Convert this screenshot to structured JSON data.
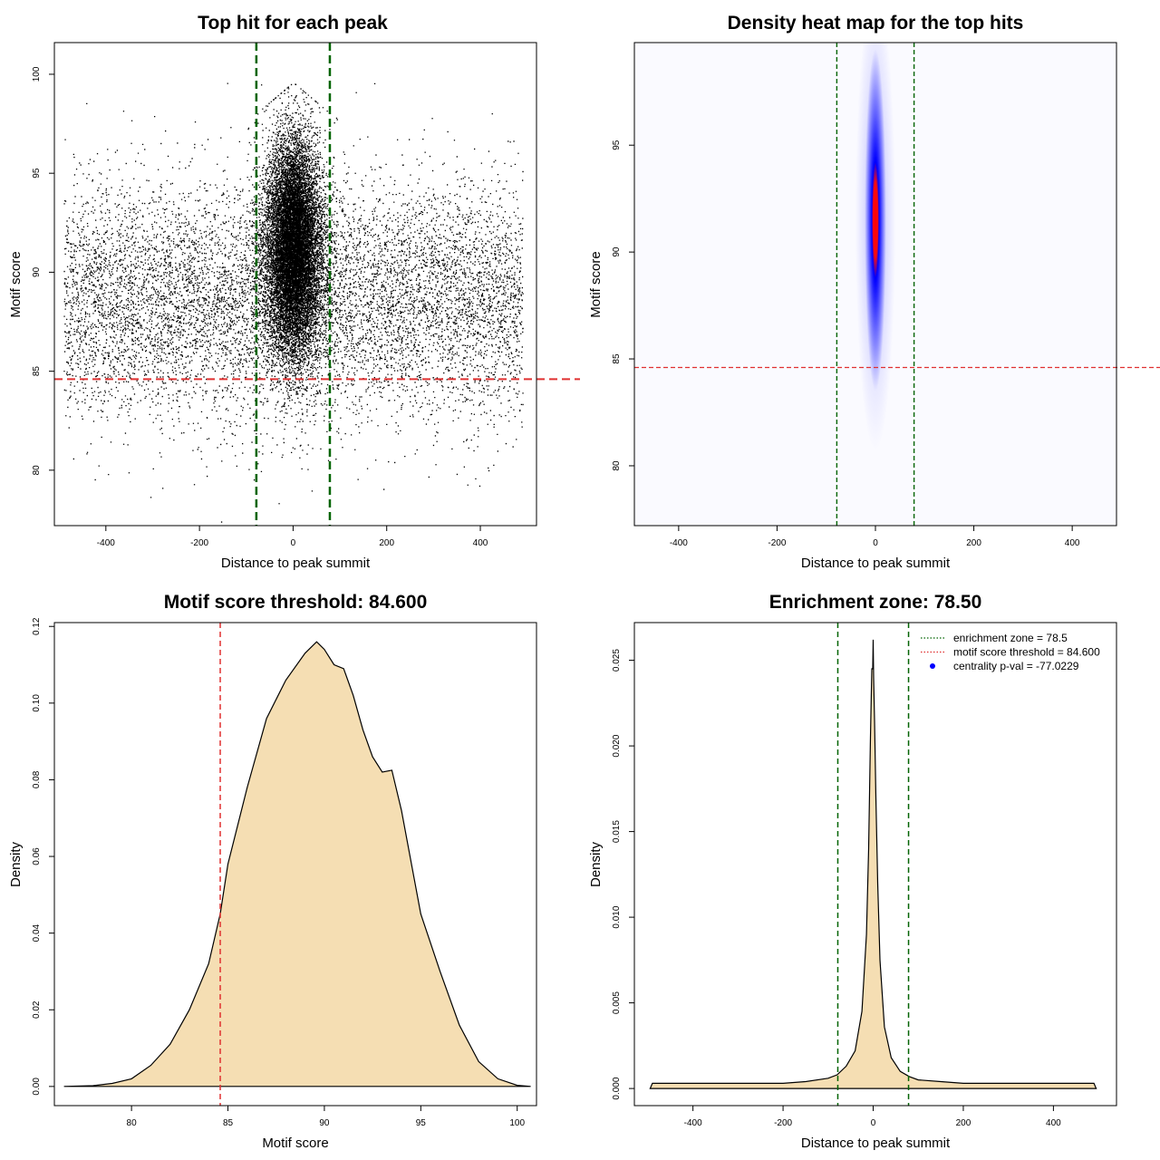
{
  "chart_data": [
    {
      "id": "scatter",
      "type": "scatter",
      "title": "Top hit for each peak",
      "xlabel": "Distance to peak summit",
      "ylabel": "Motif score",
      "xlim": [
        -510,
        520
      ],
      "ylim": [
        77.2,
        101.6
      ],
      "xticks": [
        -400,
        -200,
        0,
        200,
        400
      ],
      "yticks": [
        80,
        85,
        90,
        95,
        100
      ],
      "vlines": [
        -78.5,
        78.5
      ],
      "hline": 84.6,
      "point_color": "#000000",
      "vline_color": "#006400",
      "hline_color": "#e03030",
      "summary": {
        "x_range": [
          -490,
          490
        ],
        "score_range": [
          77.3,
          99.8
        ],
        "peak_score_range": [
          81.5,
          99.6
        ],
        "central_density_peak_x": 0
      }
    },
    {
      "id": "heatmap",
      "type": "heatmap",
      "title": "Density heat map for the top hits",
      "xlabel": "Distance to peak summit",
      "ylabel": "Motif score",
      "xlim": [
        -490,
        490
      ],
      "ylim": [
        77.2,
        99.8
      ],
      "xticks": [
        -400,
        -200,
        0,
        200,
        400
      ],
      "yticks": [
        80,
        85,
        90,
        95
      ],
      "vlines": [
        -78.5,
        78.5
      ],
      "hline": 84.6,
      "colors": {
        "low": "#ffffff",
        "mid": "#0000ff",
        "high": "#ff0000"
      },
      "hotspot": {
        "x": 0,
        "y": 91.5,
        "sd_x": 9,
        "sd_y": 4
      }
    },
    {
      "id": "score_density",
      "type": "area",
      "title": "Motif score threshold: 84.600",
      "xlabel": "Motif score",
      "ylabel": "Density",
      "xlim": [
        76,
        101
      ],
      "ylim": [
        -0.005,
        0.121
      ],
      "xticks": [
        80,
        85,
        90,
        95,
        100
      ],
      "yticks": [
        0.0,
        0.02,
        0.04,
        0.06,
        0.08,
        0.1,
        0.12
      ],
      "ytick_labels": [
        "0.00",
        "0.02",
        "0.04",
        "0.06",
        "0.08",
        "0.10",
        "0.12"
      ],
      "threshold": 84.6,
      "fill": "#f5deb3",
      "x": [
        76.5,
        78,
        79,
        80,
        81,
        82,
        83,
        84,
        84.6,
        85,
        86,
        87,
        88,
        89,
        89.6,
        90,
        90.5,
        91,
        91.5,
        92,
        92.5,
        93,
        93.5,
        94,
        95,
        96,
        97,
        98,
        99,
        100,
        100.7
      ],
      "values": [
        0.0,
        0.0002,
        0.0008,
        0.002,
        0.0055,
        0.011,
        0.02,
        0.032,
        0.045,
        0.058,
        0.078,
        0.096,
        0.106,
        0.113,
        0.116,
        0.114,
        0.11,
        0.109,
        0.102,
        0.093,
        0.086,
        0.082,
        0.0825,
        0.072,
        0.045,
        0.03,
        0.016,
        0.0065,
        0.002,
        0.0003,
        0.0
      ]
    },
    {
      "id": "distance_density",
      "type": "area",
      "title": "Enrichment zone: 78.50",
      "xlabel": "Distance to peak summit",
      "ylabel": "Density",
      "xlim": [
        -530,
        540
      ],
      "ylim": [
        -0.001,
        0.0272
      ],
      "xticks": [
        -400,
        -200,
        0,
        200,
        400
      ],
      "yticks": [
        0.0,
        0.005,
        0.01,
        0.015,
        0.02,
        0.025
      ],
      "ytick_labels": [
        "0.000",
        "0.005",
        "0.010",
        "0.015",
        "0.020",
        "0.025"
      ],
      "vlines": [
        -78.5,
        78.5
      ],
      "fill": "#f5deb3",
      "x": [
        -495,
        -490,
        -400,
        -300,
        -200,
        -150,
        -100,
        -80,
        -60,
        -40,
        -25,
        -15,
        -10,
        -6,
        -3,
        -1,
        0,
        1,
        3,
        6,
        10,
        15,
        25,
        40,
        60,
        80,
        100,
        150,
        200,
        300,
        400,
        490,
        495
      ],
      "values": [
        0.0,
        0.0003,
        0.0003,
        0.0003,
        0.0003,
        0.0004,
        0.0006,
        0.0008,
        0.0013,
        0.0022,
        0.0045,
        0.009,
        0.014,
        0.0205,
        0.0245,
        0.0245,
        0.0262,
        0.024,
        0.0215,
        0.017,
        0.012,
        0.0075,
        0.0036,
        0.0018,
        0.001,
        0.0007,
        0.0005,
        0.0004,
        0.0003,
        0.0003,
        0.0003,
        0.0003,
        0.0
      ],
      "legend": [
        {
          "label": "enrichment zone = 78.5",
          "color": "#006400",
          "style": "dotted-line"
        },
        {
          "label": "motif score threshold = 84.600",
          "color": "#e03030",
          "style": "dotted-line"
        },
        {
          "label": "centrality p-val = -77.0229",
          "color": "#0000ff",
          "style": "dot"
        }
      ]
    }
  ]
}
